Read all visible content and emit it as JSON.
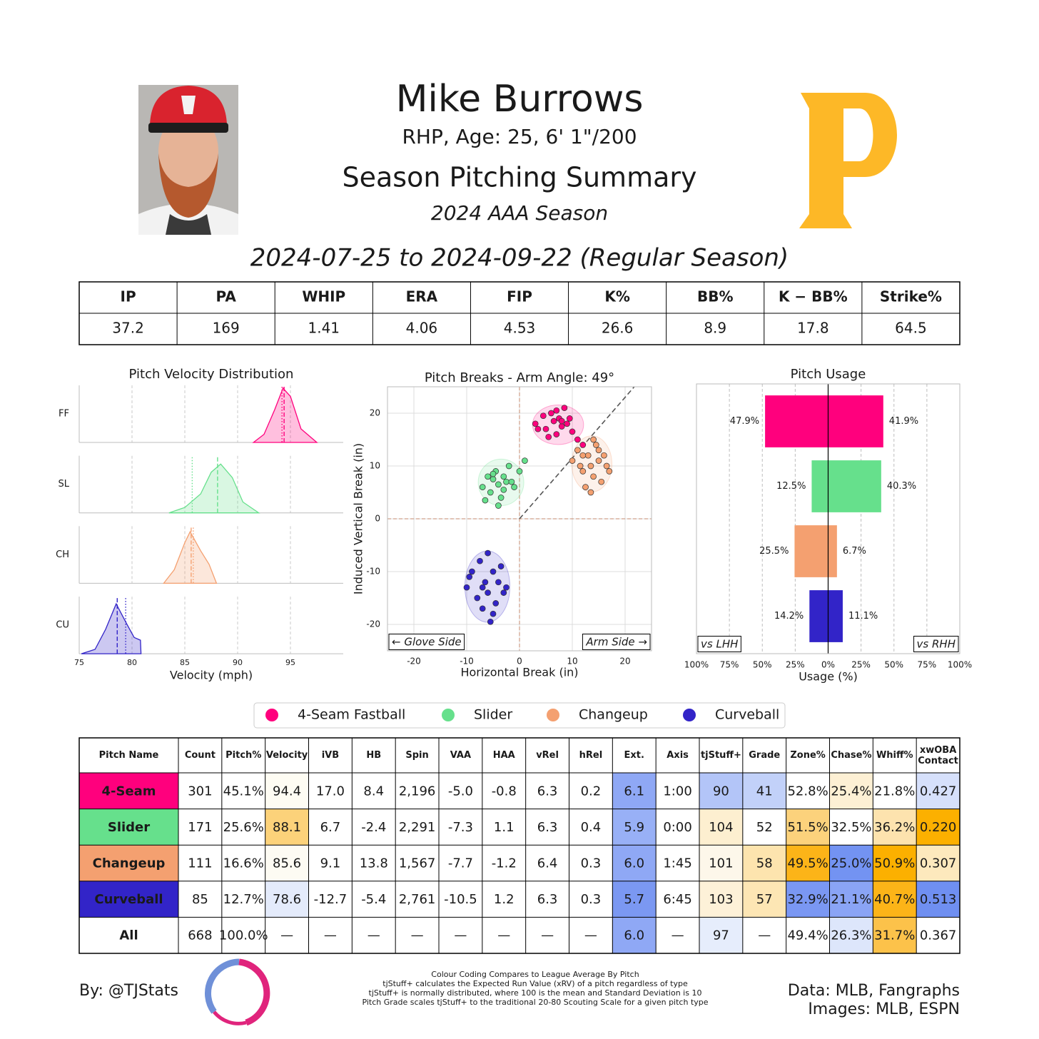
{
  "header": {
    "name": "Mike Burrows",
    "bio": "RHP, Age: 25, 6' 1\"/200",
    "title": "Season Pitching Summary",
    "season": "2024 AAA Season",
    "dates": "2024-07-25 to 2024-09-22 (Regular Season)"
  },
  "stats_table": {
    "columns": [
      "IP",
      "PA",
      "WHIP",
      "ERA",
      "FIP",
      "K%",
      "BB%",
      "K − BB%",
      "Strike%"
    ],
    "rows": [
      [
        37.2,
        169,
        1.41,
        4.06,
        4.53,
        26.6,
        8.9,
        17.8,
        64.5
      ]
    ]
  },
  "chart_data": [
    {
      "type": "density",
      "title": "Pitch Velocity Distribution",
      "xlabel": "Velocity (mph)",
      "xlim": [
        75,
        100
      ],
      "xticks": [
        75,
        80,
        85,
        90,
        95
      ],
      "ylim": [
        0,
        1
      ],
      "grid": true,
      "series": [
        {
          "name": "FF",
          "color": "#ff007d",
          "x": [
            91.5,
            92.5,
            93.5,
            94.3,
            95,
            96,
            97.5
          ],
          "values": [
            0,
            0.15,
            0.6,
            1,
            0.85,
            0.25,
            0
          ],
          "mean": 94.4,
          "league_mean": 94.2
        },
        {
          "name": "SL",
          "color": "#66e08c",
          "x": [
            83.5,
            85,
            86.5,
            87.5,
            88.4,
            89.5,
            90.5,
            92
          ],
          "values": [
            0,
            0.1,
            0.35,
            0.75,
            0.9,
            0.65,
            0.2,
            0
          ],
          "mean": 88.1,
          "league_mean": 85.7
        },
        {
          "name": "CH",
          "color": "#f4a070",
          "x": [
            83,
            84,
            85,
            85.5,
            86.5,
            87.3,
            88
          ],
          "values": [
            0,
            0.25,
            0.75,
            0.95,
            0.6,
            0.35,
            0
          ],
          "mean": 85.6,
          "league_mean": 85.8
        },
        {
          "name": "CU",
          "color": "#3224c8",
          "x": [
            75.2,
            76.5,
            77.5,
            78.5,
            79.5,
            80.2,
            80.8,
            80.85
          ],
          "values": [
            0,
            0.08,
            0.45,
            0.92,
            0.55,
            0.3,
            0.25,
            0
          ],
          "mean": 78.6,
          "league_mean": 79.4
        }
      ]
    },
    {
      "type": "scatter",
      "title": "Pitch Breaks - Arm Angle: 49°",
      "xlabel": "Horizontal Break (in)",
      "ylabel": "Induced Vertical Break (in)",
      "xlim": [
        -25,
        25
      ],
      "ylim": [
        -25,
        25
      ],
      "xticks": [
        -20,
        -10,
        0,
        10,
        20
      ],
      "yticks": [
        -20,
        -10,
        0,
        10,
        20
      ],
      "grid": true,
      "arm_angle": 49,
      "annotations": [
        "← Glove Side",
        "Arm Side →"
      ],
      "series": [
        {
          "name": "4-Seam Fastball",
          "color": "#ff007d",
          "x": [
            3,
            4.5,
            5,
            6,
            6.5,
            7,
            7.5,
            8,
            8.5,
            9,
            10,
            11,
            5.5,
            7,
            9.5,
            12,
            3.5,
            8
          ],
          "values": [
            18,
            19.5,
            17,
            20,
            18.5,
            16,
            19,
            17.5,
            21,
            18,
            16.5,
            15,
            15.5,
            20.5,
            19,
            14,
            17,
            18.5
          ]
        },
        {
          "name": "Slider",
          "color": "#66e08c",
          "x": [
            -7,
            -6,
            -5.5,
            -5,
            -4.5,
            -4,
            -3.5,
            -3,
            -2.5,
            -2,
            -1,
            0,
            1,
            -6.5,
            -4,
            -3,
            -5,
            -1.5
          ],
          "values": [
            6,
            8,
            5,
            7.5,
            9,
            6.5,
            4,
            8,
            7,
            10,
            6,
            9,
            11,
            3.5,
            2.5,
            5.5,
            8.5,
            7
          ]
        },
        {
          "name": "Changeup",
          "color": "#f4a070",
          "x": [
            10,
            11,
            12,
            12.5,
            13,
            13.5,
            14,
            14.5,
            15,
            15.5,
            16,
            17,
            11.5,
            13.5,
            15,
            14,
            16.5,
            12
          ],
          "values": [
            11,
            13,
            9,
            6,
            12,
            10,
            8,
            14,
            11,
            7,
            12,
            9,
            10,
            5,
            13,
            15,
            10,
            12
          ]
        },
        {
          "name": "Curveball",
          "color": "#3224c8",
          "x": [
            -10,
            -9,
            -8,
            -7.5,
            -7,
            -6.5,
            -6,
            -5.5,
            -5,
            -4.5,
            -4,
            -3,
            -9.5,
            -6,
            -5,
            -7,
            -3.5,
            -2.5
          ],
          "values": [
            -13,
            -10,
            -15,
            -8,
            -17,
            -12,
            -14,
            -19.5,
            -10,
            -16,
            -12,
            -14,
            -11,
            -6.5,
            -18,
            -13,
            -9,
            -13
          ]
        }
      ]
    },
    {
      "type": "bar",
      "orientation": "horizontal",
      "title": "Pitch Usage",
      "xlabel": "Usage (%)",
      "xlim": [
        -100,
        100
      ],
      "xticks": [
        {
          "value": -100,
          "label": "100%"
        },
        {
          "value": -75,
          "label": "75%"
        },
        {
          "value": -50,
          "label": "50%"
        },
        {
          "value": -25,
          "label": "25%"
        },
        {
          "value": 0,
          "label": "0%"
        },
        {
          "value": 25,
          "label": "25%"
        },
        {
          "value": 50,
          "label": "50%"
        },
        {
          "value": 75,
          "label": "75%"
        },
        {
          "value": 100,
          "label": "100%"
        }
      ],
      "grid": true,
      "colors": [
        "#ff007d",
        "#66e08c",
        "#f4a070",
        "#3224c8"
      ],
      "series": [
        {
          "name": "vs LHH",
          "values": [
            -47.9,
            -12.5,
            -25.5,
            -14.2
          ],
          "value_labels": [
            "47.9%",
            "12.5%",
            "25.5%",
            "14.2%"
          ]
        },
        {
          "name": "vs RHH",
          "values": [
            41.9,
            40.3,
            6.7,
            11.1
          ],
          "value_labels": [
            "41.9%",
            "40.3%",
            "6.7%",
            "11.1%"
          ]
        }
      ]
    }
  ],
  "pitch_table": {
    "columns": [
      "Pitch Name",
      "Count",
      "Pitch%",
      "Velocity",
      "iVB",
      "HB",
      "Spin",
      "VAA",
      "HAA",
      "vRel",
      "hRel",
      "Ext.",
      "Axis",
      "tjStuff+",
      "Grade",
      "Zone%",
      "Chase%",
      "Whiff%",
      "xwOBA Contact"
    ],
    "rows": [
      [
        "4-Seam",
        "301",
        "45.1%",
        "94.4",
        "17.0",
        "8.4",
        "2,196",
        "-5.0",
        "-0.8",
        "6.3",
        "0.2",
        "6.1",
        "1:00",
        "90",
        "41",
        "52.8%",
        "25.4%",
        "21.8%",
        "0.427"
      ],
      [
        "Slider",
        "171",
        "25.6%",
        "88.1",
        "6.7",
        "-2.4",
        "2,291",
        "-7.3",
        "1.1",
        "6.3",
        "0.4",
        "5.9",
        "0:00",
        "104",
        "52",
        "51.5%",
        "32.5%",
        "36.2%",
        "0.220"
      ],
      [
        "Changeup",
        "111",
        "16.6%",
        "85.6",
        "9.1",
        "13.8",
        "1,567",
        "-7.7",
        "-1.2",
        "6.4",
        "0.3",
        "6.0",
        "1:45",
        "101",
        "58",
        "49.5%",
        "25.0%",
        "50.9%",
        "0.307"
      ],
      [
        "Curveball",
        "85",
        "12.7%",
        "78.6",
        "-12.7",
        "-5.4",
        "2,761",
        "-10.5",
        "1.2",
        "6.3",
        "0.3",
        "5.7",
        "6:45",
        "103",
        "57",
        "32.9%",
        "21.1%",
        "40.7%",
        "0.513"
      ],
      [
        "All",
        "668",
        "100.0%",
        "—",
        "—",
        "—",
        "—",
        "—",
        "—",
        "—",
        "—",
        "6.0",
        "—",
        "97",
        "—",
        "49.4%",
        "26.3%",
        "31.7%",
        "0.367"
      ]
    ],
    "cell_colors": [
      [
        "#ff007d",
        null,
        null,
        "#fefcf3",
        null,
        null,
        null,
        null,
        null,
        null,
        null,
        "#8fa8f5",
        null,
        "#b3c5f8",
        "#c2d1f9",
        null,
        "#fdf0d4",
        null,
        "#d6e0fb"
      ],
      [
        "#66e08c",
        null,
        null,
        "#fcd27a",
        null,
        null,
        null,
        null,
        null,
        null,
        null,
        "#98b0f6",
        null,
        "#fdefd0",
        null,
        "#fcd27c",
        null,
        "#fde3ae",
        "#fcb000"
      ],
      [
        "#f4a070",
        null,
        null,
        "#fdfbf3",
        null,
        null,
        null,
        null,
        null,
        null,
        null,
        "#8fa8f5",
        null,
        "#fdf7ea",
        "#fde4ae",
        "#fcb418",
        "#7393f2",
        "#fcb000",
        "#fde9bd"
      ],
      [
        "#3224c8",
        null,
        null,
        "#e4ebfb",
        null,
        null,
        null,
        null,
        null,
        null,
        null,
        "#7b98f2",
        null,
        "#fdf1d8",
        "#fde6b4",
        "#7a97f3",
        "#8aa4f5",
        "#fcb418",
        "#6f8ff1"
      ],
      [
        null,
        null,
        null,
        null,
        null,
        null,
        null,
        null,
        null,
        null,
        null,
        "#8fa8f5",
        null,
        "#e6edfc",
        null,
        null,
        "#dde6fb",
        "#fcc24a",
        null
      ]
    ]
  },
  "footer": {
    "credit": "By: @TJStats",
    "notes": [
      "Colour Coding Compares to League Average By Pitch",
      "tjStuff+ calculates the Expected Run Value (xRV) of a pitch regardless of type",
      "tjStuff+ is normally distributed, where 100 is the mean and Standard Deviation is 10",
      "Pitch Grade scales tjStuff+ to the traditional 20-80 Scouting Scale for a given pitch type"
    ],
    "sources": [
      "Data: MLB, Fangraphs",
      "Images: MLB, ESPN"
    ]
  }
}
